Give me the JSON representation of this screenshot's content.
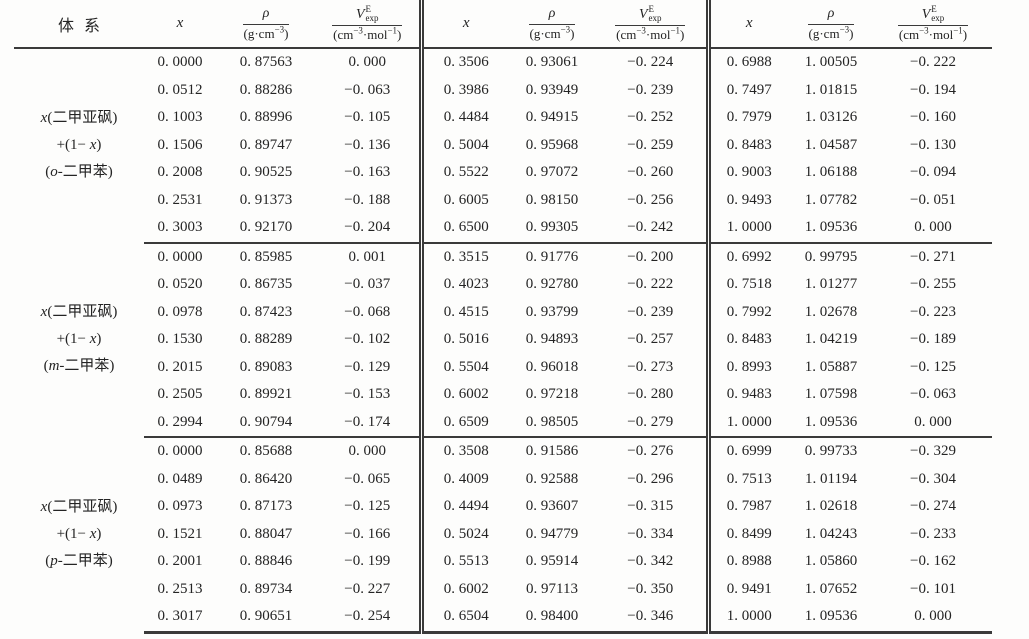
{
  "header": {
    "system": "体系",
    "col_x": "x",
    "rho": {
      "num": "ρ",
      "den_pre": "(g·cm",
      "den_sup": "−3",
      "den_post": ")"
    },
    "v": {
      "base": "V",
      "sup": "E",
      "sub": "exp",
      "den_pre": "(cm",
      "den_sup1": "−3",
      "den_mid": "·mol",
      "den_sup2": "−1",
      "den_post": ")"
    }
  },
  "blocks": [
    {
      "system_lines": [
        {
          "pre": "",
          "it": "x",
          "post": "(二甲亚砜)"
        },
        {
          "pre": "+(1− ",
          "it": "x",
          "post": ")"
        },
        {
          "pre": "(",
          "it": "o",
          "post": "-二甲苯)"
        }
      ],
      "rows": [
        [
          "0. 0000",
          "0. 87563",
          "0. 000",
          "0. 3506",
          "0. 93061",
          "−0. 224",
          "0. 6988",
          "1. 00505",
          "−0. 222"
        ],
        [
          "0. 0512",
          "0. 88286",
          "−0. 063",
          "0. 3986",
          "0. 93949",
          "−0. 239",
          "0. 7497",
          "1. 01815",
          "−0. 194"
        ],
        [
          "0. 1003",
          "0. 88996",
          "−0. 105",
          "0. 4484",
          "0. 94915",
          "−0. 252",
          "0. 7979",
          "1. 03126",
          "−0. 160"
        ],
        [
          "0. 1506",
          "0. 89747",
          "−0. 136",
          "0. 5004",
          "0. 95968",
          "−0. 259",
          "0. 8483",
          "1. 04587",
          "−0. 130"
        ],
        [
          "0. 2008",
          "0. 90525",
          "−0. 163",
          "0. 5522",
          "0. 97072",
          "−0. 260",
          "0. 9003",
          "1. 06188",
          "−0. 094"
        ],
        [
          "0. 2531",
          "0. 91373",
          "−0. 188",
          "0. 6005",
          "0. 98150",
          "−0. 256",
          "0. 9493",
          "1. 07782",
          "−0. 051"
        ],
        [
          "0. 3003",
          "0. 92170",
          "−0. 204",
          "0. 6500",
          "0. 99305",
          "−0. 242",
          "1. 0000",
          "1. 09536",
          "0. 000"
        ]
      ]
    },
    {
      "system_lines": [
        {
          "pre": "",
          "it": "x",
          "post": "(二甲亚砜)"
        },
        {
          "pre": "+(1− ",
          "it": "x",
          "post": ")"
        },
        {
          "pre": "(",
          "it": "m",
          "post": "-二甲苯)"
        }
      ],
      "rows": [
        [
          "0. 0000",
          "0. 85985",
          "0. 001",
          "0. 3515",
          "0. 91776",
          "−0. 200",
          "0. 6992",
          "0. 99795",
          "−0. 271"
        ],
        [
          "0. 0520",
          "0. 86735",
          "−0. 037",
          "0. 4023",
          "0. 92780",
          "−0. 222",
          "0. 7518",
          "1. 01277",
          "−0. 255"
        ],
        [
          "0. 0978",
          "0. 87423",
          "−0. 068",
          "0. 4515",
          "0. 93799",
          "−0. 239",
          "0. 7992",
          "1. 02678",
          "−0. 223"
        ],
        [
          "0. 1530",
          "0. 88289",
          "−0. 102",
          "0. 5016",
          "0. 94893",
          "−0. 257",
          "0. 8483",
          "1. 04219",
          "−0. 189"
        ],
        [
          "0. 2015",
          "0. 89083",
          "−0. 129",
          "0. 5504",
          "0. 96018",
          "−0. 273",
          "0. 8993",
          "1. 05887",
          "−0. 125"
        ],
        [
          "0. 2505",
          "0. 89921",
          "−0. 153",
          "0. 6002",
          "0. 97218",
          "−0. 280",
          "0. 9483",
          "1. 07598",
          "−0. 063"
        ],
        [
          "0. 2994",
          "0. 90794",
          "−0. 174",
          "0. 6509",
          "0. 98505",
          "−0. 279",
          "1. 0000",
          "1. 09536",
          "0. 000"
        ]
      ]
    },
    {
      "system_lines": [
        {
          "pre": "",
          "it": "x",
          "post": "(二甲亚砜)"
        },
        {
          "pre": "+(1− ",
          "it": "x",
          "post": ")"
        },
        {
          "pre": "(",
          "it": "p",
          "post": "-二甲苯)"
        }
      ],
      "rows": [
        [
          "0. 0000",
          "0. 85688",
          "0. 000",
          "0. 3508",
          "0. 91586",
          "−0. 276",
          "0. 6999",
          "0. 99733",
          "−0. 329"
        ],
        [
          "0. 0489",
          "0. 86420",
          "−0. 065",
          "0. 4009",
          "0. 92588",
          "−0. 296",
          "0. 7513",
          "1. 01194",
          "−0. 304"
        ],
        [
          "0. 0973",
          "0. 87173",
          "−0. 125",
          "0. 4494",
          "0. 93607",
          "−0. 315",
          "0. 7987",
          "1. 02618",
          "−0. 274"
        ],
        [
          "0. 1521",
          "0. 88047",
          "−0. 166",
          "0. 5024",
          "0. 94779",
          "−0. 334",
          "0. 8499",
          "1. 04243",
          "−0. 233"
        ],
        [
          "0. 2001",
          "0. 88846",
          "−0. 199",
          "0. 5513",
          "0. 95914",
          "−0. 342",
          "0. 8988",
          "1. 05860",
          "−0. 162"
        ],
        [
          "0. 2513",
          "0. 89734",
          "−0. 227",
          "0. 6002",
          "0. 97113",
          "−0. 350",
          "0. 9491",
          "1. 07652",
          "−0. 101"
        ],
        [
          "0. 3017",
          "0. 90651",
          "−0. 254",
          "0. 6504",
          "0. 98400",
          "−0. 346",
          "1. 0000",
          "1. 09536",
          "0. 000"
        ]
      ]
    }
  ]
}
